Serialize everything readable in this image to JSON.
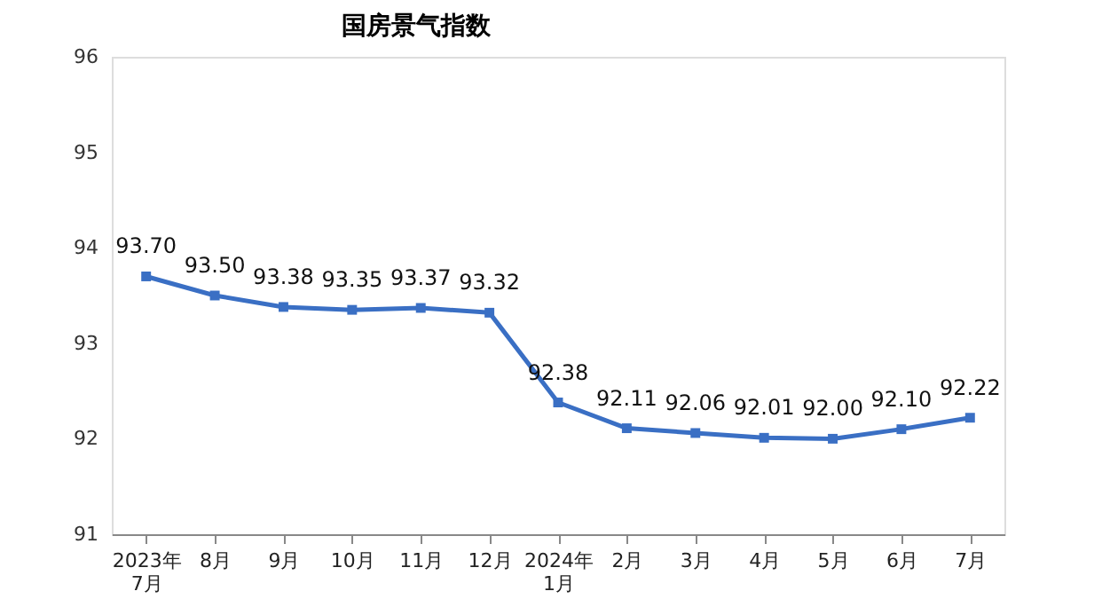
{
  "chart_data": {
    "type": "line",
    "title": "国房景气指数",
    "categories": [
      "2023年\n7月",
      "8月",
      "9月",
      "10月",
      "11月",
      "12月",
      "2024年\n1月",
      "2月",
      "3月",
      "4月",
      "5月",
      "6月",
      "7月"
    ],
    "series": [
      {
        "color": "#3a6fc4",
        "values": [
          93.7,
          93.5,
          93.38,
          93.35,
          93.37,
          93.32,
          92.38,
          92.11,
          92.06,
          92.01,
          92.0,
          92.1,
          92.22
        ]
      }
    ],
    "value_labels": [
      "93.70",
      "93.50",
      "93.38",
      "93.35",
      "93.37",
      "93.32",
      "92.38",
      "92.11",
      "92.06",
      "92.01",
      "92.00",
      "92.10",
      "92.22"
    ],
    "ylim": [
      91,
      96
    ],
    "yticks": [
      91,
      92,
      93,
      94,
      95,
      96
    ],
    "grid": false,
    "marker": "square",
    "line_style": "solid"
  }
}
